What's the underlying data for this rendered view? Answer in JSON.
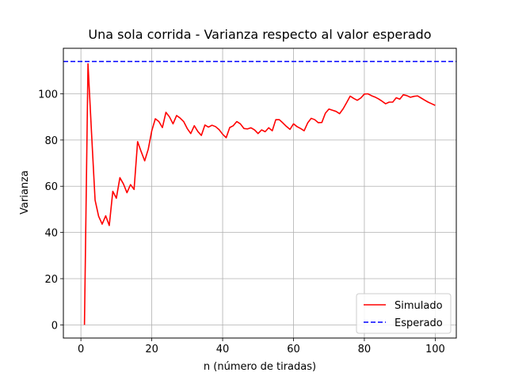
{
  "chart_data": {
    "type": "line",
    "title": "Una sola corrida  - Varianza respecto al valor esperado",
    "xlabel": "n (número de tiradas)",
    "ylabel": "Varianza",
    "xlim": [
      -4.95,
      105.95
    ],
    "ylim": [
      -5.7,
      119.7
    ],
    "xticks": [
      0,
      20,
      40,
      60,
      80,
      100
    ],
    "yticks": [
      0,
      20,
      40,
      60,
      80,
      100
    ],
    "grid": true,
    "legend_position": "lower-right",
    "series": [
      {
        "name": "Simulado",
        "color": "#ff0000",
        "style": "solid",
        "x": [
          1,
          2,
          3,
          4,
          5,
          6,
          7,
          8,
          9,
          10,
          11,
          12,
          13,
          14,
          15,
          16,
          17,
          18,
          19,
          20,
          21,
          22,
          23,
          24,
          25,
          26,
          27,
          28,
          29,
          30,
          31,
          32,
          33,
          34,
          35,
          36,
          37,
          38,
          39,
          40,
          41,
          42,
          43,
          44,
          45,
          46,
          47,
          48,
          49,
          50,
          51,
          52,
          53,
          54,
          55,
          56,
          57,
          58,
          59,
          60,
          61,
          62,
          63,
          64,
          65,
          66,
          67,
          68,
          69,
          70,
          71,
          72,
          73,
          74,
          75,
          76,
          77,
          78,
          79,
          80,
          81,
          82,
          83,
          84,
          85,
          86,
          87,
          88,
          89,
          90,
          91,
          92,
          93,
          94,
          95,
          96,
          97,
          98,
          99,
          100
        ],
        "y": [
          0,
          113,
          83,
          54,
          47,
          43.6,
          47.2,
          43,
          57.8,
          54.8,
          63.7,
          61,
          57.2,
          60.7,
          58.6,
          79.3,
          75,
          71,
          76,
          84,
          89.2,
          88,
          85.4,
          92,
          90,
          87,
          90.6,
          89.5,
          88,
          85,
          82.8,
          86.2,
          83.7,
          82,
          86.5,
          85.6,
          86.4,
          85.8,
          84.5,
          82.5,
          81,
          85.4,
          86.2,
          88,
          87,
          85,
          84.8,
          85.3,
          84.4,
          82.8,
          84.4,
          83.6,
          85.3,
          84,
          88.8,
          88.8,
          87.4,
          85.9,
          84.6,
          87,
          85.8,
          85,
          84,
          87.4,
          89.4,
          88.8,
          87.5,
          87.6,
          91.6,
          93.4,
          92.9,
          92.4,
          91.4,
          93.5,
          96.2,
          99,
          98,
          97.2,
          98.2,
          99.9,
          100,
          99.2,
          98.6,
          97.8,
          96.8,
          95.7,
          96.4,
          96.4,
          98.3,
          97.7,
          99.6,
          99.2,
          98.5,
          98.9,
          99.1,
          98.2,
          97.3,
          96.4,
          95.7,
          95
        ]
      },
      {
        "name": "Esperado",
        "color": "#0000ff",
        "style": "dashed",
        "y": 114
      }
    ]
  }
}
